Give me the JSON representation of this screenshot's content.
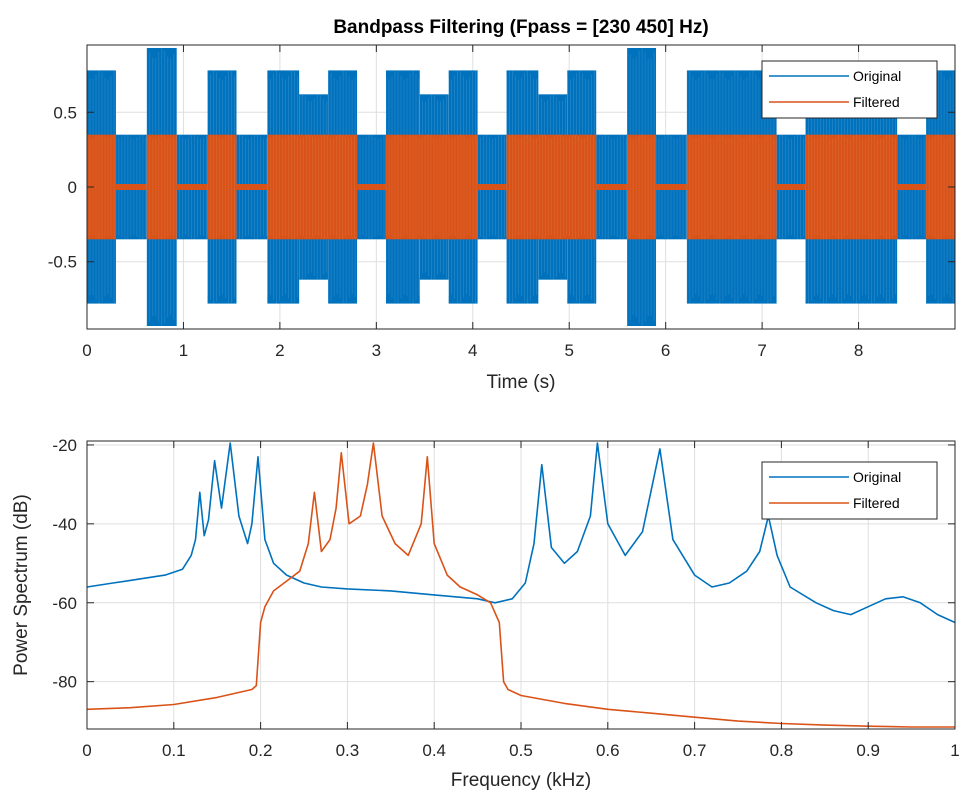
{
  "colors": {
    "original": "#0072BD",
    "filtered": "#D95319",
    "grid": "#dfdfdf",
    "axis": "#262626"
  },
  "chart_data": [
    {
      "type": "line",
      "title": "Bandpass Filtering  (Fpass = [230 450] Hz)",
      "xlabel": "Time (s)",
      "ylabel": "",
      "xlim": [
        0,
        9
      ],
      "ylim": [
        -0.95,
        0.95
      ],
      "xticks": [
        0,
        1,
        2,
        3,
        4,
        5,
        6,
        7,
        8
      ],
      "yticks": [
        -0.5,
        0,
        0.5
      ],
      "xtick_labels": [
        "0",
        "1",
        "2",
        "3",
        "4",
        "5",
        "6",
        "7",
        "8"
      ],
      "ytick_labels": [
        "-0.5",
        "0",
        "0.5"
      ],
      "grid": true,
      "legend": {
        "position": "top-right",
        "entries": [
          "Original",
          "Filtered"
        ]
      },
      "series": [
        {
          "name": "Original",
          "envelope": [
            {
              "t0": 0.0,
              "t1": 0.3,
              "amp": 0.78
            },
            {
              "t0": 0.3,
              "t1": 0.62,
              "amp": 0.35
            },
            {
              "t0": 0.62,
              "t1": 0.93,
              "amp": 0.93
            },
            {
              "t0": 0.93,
              "t1": 1.25,
              "amp": 0.35
            },
            {
              "t0": 1.25,
              "t1": 1.55,
              "amp": 0.78
            },
            {
              "t0": 1.55,
              "t1": 1.87,
              "amp": 0.35
            },
            {
              "t0": 1.87,
              "t1": 2.2,
              "amp": 0.78
            },
            {
              "t0": 2.2,
              "t1": 2.5,
              "amp": 0.62
            },
            {
              "t0": 2.5,
              "t1": 2.8,
              "amp": 0.78
            },
            {
              "t0": 2.8,
              "t1": 3.1,
              "amp": 0.35
            },
            {
              "t0": 3.1,
              "t1": 3.45,
              "amp": 0.78
            },
            {
              "t0": 3.45,
              "t1": 3.75,
              "amp": 0.62
            },
            {
              "t0": 3.75,
              "t1": 4.05,
              "amp": 0.78
            },
            {
              "t0": 4.05,
              "t1": 4.35,
              "amp": 0.35
            },
            {
              "t0": 4.35,
              "t1": 4.68,
              "amp": 0.78
            },
            {
              "t0": 4.68,
              "t1": 4.98,
              "amp": 0.62
            },
            {
              "t0": 4.98,
              "t1": 5.28,
              "amp": 0.78
            },
            {
              "t0": 5.28,
              "t1": 5.6,
              "amp": 0.35
            },
            {
              "t0": 5.6,
              "t1": 5.9,
              "amp": 0.93
            },
            {
              "t0": 5.9,
              "t1": 6.22,
              "amp": 0.35
            },
            {
              "t0": 6.22,
              "t1": 7.15,
              "amp": 0.78
            },
            {
              "t0": 7.15,
              "t1": 7.45,
              "amp": 0.35
            },
            {
              "t0": 7.45,
              "t1": 8.4,
              "amp": 0.78
            },
            {
              "t0": 8.4,
              "t1": 8.7,
              "amp": 0.35
            },
            {
              "t0": 8.7,
              "t1": 9.0,
              "amp": 0.78
            }
          ]
        },
        {
          "name": "Filtered",
          "envelope": [
            {
              "t0": 0.0,
              "t1": 0.3,
              "amp": 0.35
            },
            {
              "t0": 0.3,
              "t1": 0.62,
              "amp": 0.02
            },
            {
              "t0": 0.62,
              "t1": 0.93,
              "amp": 0.35
            },
            {
              "t0": 0.93,
              "t1": 1.25,
              "amp": 0.02
            },
            {
              "t0": 1.25,
              "t1": 1.55,
              "amp": 0.35
            },
            {
              "t0": 1.55,
              "t1": 1.87,
              "amp": 0.02
            },
            {
              "t0": 1.87,
              "t1": 2.8,
              "amp": 0.35
            },
            {
              "t0": 2.8,
              "t1": 3.1,
              "amp": 0.02
            },
            {
              "t0": 3.1,
              "t1": 4.05,
              "amp": 0.35
            },
            {
              "t0": 4.05,
              "t1": 4.35,
              "amp": 0.02
            },
            {
              "t0": 4.35,
              "t1": 5.28,
              "amp": 0.35
            },
            {
              "t0": 5.28,
              "t1": 5.6,
              "amp": 0.02
            },
            {
              "t0": 5.6,
              "t1": 5.9,
              "amp": 0.35
            },
            {
              "t0": 5.9,
              "t1": 6.22,
              "amp": 0.02
            },
            {
              "t0": 6.22,
              "t1": 7.15,
              "amp": 0.35
            },
            {
              "t0": 7.15,
              "t1": 7.45,
              "amp": 0.02
            },
            {
              "t0": 7.45,
              "t1": 8.4,
              "amp": 0.35
            },
            {
              "t0": 8.4,
              "t1": 8.7,
              "amp": 0.02
            },
            {
              "t0": 8.7,
              "t1": 9.0,
              "amp": 0.35
            }
          ]
        }
      ]
    },
    {
      "type": "line",
      "title": "",
      "xlabel": "Frequency (kHz)",
      "ylabel": "Power Spectrum (dB)",
      "xlim": [
        0,
        1
      ],
      "ylim": [
        -92,
        -19
      ],
      "xticks": [
        0,
        0.1,
        0.2,
        0.3,
        0.4,
        0.5,
        0.6,
        0.7,
        0.8,
        0.9,
        1
      ],
      "yticks": [
        -80,
        -60,
        -40,
        -20
      ],
      "xtick_labels": [
        "0",
        "0.1",
        "0.2",
        "0.3",
        "0.4",
        "0.5",
        "0.6",
        "0.7",
        "0.8",
        "0.9",
        "1"
      ],
      "ytick_labels": [
        "-80",
        "-60",
        "-40",
        "-20"
      ],
      "grid": true,
      "legend": {
        "position": "top-right",
        "entries": [
          "Original",
          "Filtered"
        ]
      },
      "series": [
        {
          "name": "Original",
          "points": [
            [
              0,
              -56
            ],
            [
              0.03,
              -55
            ],
            [
              0.06,
              -54
            ],
            [
              0.09,
              -53
            ],
            [
              0.11,
              -51.5
            ],
            [
              0.12,
              -48
            ],
            [
              0.125,
              -44
            ],
            [
              0.13,
              -32
            ],
            [
              0.135,
              -43
            ],
            [
              0.14,
              -39
            ],
            [
              0.147,
              -24
            ],
            [
              0.155,
              -36
            ],
            [
              0.165,
              -19.5
            ],
            [
              0.175,
              -38
            ],
            [
              0.185,
              -45
            ],
            [
              0.19,
              -40
            ],
            [
              0.197,
              -23
            ],
            [
              0.205,
              -44
            ],
            [
              0.215,
              -50
            ],
            [
              0.23,
              -53
            ],
            [
              0.25,
              -55
            ],
            [
              0.27,
              -56
            ],
            [
              0.3,
              -56.5
            ],
            [
              0.35,
              -57
            ],
            [
              0.4,
              -58
            ],
            [
              0.45,
              -59
            ],
            [
              0.47,
              -60
            ],
            [
              0.49,
              -59
            ],
            [
              0.505,
              -55
            ],
            [
              0.515,
              -45
            ],
            [
              0.524,
              -25
            ],
            [
              0.535,
              -46
            ],
            [
              0.55,
              -50
            ],
            [
              0.565,
              -47
            ],
            [
              0.58,
              -38
            ],
            [
              0.588,
              -19.5
            ],
            [
              0.6,
              -40
            ],
            [
              0.62,
              -48
            ],
            [
              0.64,
              -42
            ],
            [
              0.66,
              -21
            ],
            [
              0.675,
              -44
            ],
            [
              0.7,
              -53
            ],
            [
              0.72,
              -56
            ],
            [
              0.74,
              -55
            ],
            [
              0.76,
              -52
            ],
            [
              0.775,
              -47
            ],
            [
              0.785,
              -38
            ],
            [
              0.795,
              -48
            ],
            [
              0.81,
              -56
            ],
            [
              0.84,
              -60
            ],
            [
              0.86,
              -62
            ],
            [
              0.88,
              -63
            ],
            [
              0.9,
              -61
            ],
            [
              0.92,
              -59
            ],
            [
              0.94,
              -58.5
            ],
            [
              0.96,
              -60
            ],
            [
              0.98,
              -63
            ],
            [
              1,
              -65
            ]
          ]
        },
        {
          "name": "Filtered",
          "points": [
            [
              0,
              -87
            ],
            [
              0.05,
              -86.6
            ],
            [
              0.1,
              -85.8
            ],
            [
              0.15,
              -84
            ],
            [
              0.19,
              -82
            ],
            [
              0.195,
              -81
            ],
            [
              0.2,
              -65
            ],
            [
              0.205,
              -61
            ],
            [
              0.215,
              -57
            ],
            [
              0.23,
              -54.5
            ],
            [
              0.245,
              -52
            ],
            [
              0.255,
              -45
            ],
            [
              0.262,
              -32
            ],
            [
              0.27,
              -47
            ],
            [
              0.28,
              -44
            ],
            [
              0.287,
              -36
            ],
            [
              0.293,
              -22
            ],
            [
              0.302,
              -40
            ],
            [
              0.315,
              -38
            ],
            [
              0.323,
              -30
            ],
            [
              0.33,
              -19.5
            ],
            [
              0.34,
              -38
            ],
            [
              0.355,
              -45
            ],
            [
              0.37,
              -48
            ],
            [
              0.385,
              -40
            ],
            [
              0.392,
              -23
            ],
            [
              0.4,
              -45
            ],
            [
              0.415,
              -53
            ],
            [
              0.43,
              -56
            ],
            [
              0.45,
              -58
            ],
            [
              0.465,
              -60
            ],
            [
              0.475,
              -65
            ],
            [
              0.48,
              -80
            ],
            [
              0.485,
              -82
            ],
            [
              0.5,
              -83.5
            ],
            [
              0.55,
              -85.5
            ],
            [
              0.6,
              -87
            ],
            [
              0.65,
              -88
            ],
            [
              0.7,
              -89
            ],
            [
              0.75,
              -90
            ],
            [
              0.8,
              -90.6
            ],
            [
              0.85,
              -91
            ],
            [
              0.9,
              -91.3
            ],
            [
              0.95,
              -91.5
            ],
            [
              1,
              -91.5
            ]
          ]
        }
      ]
    }
  ]
}
